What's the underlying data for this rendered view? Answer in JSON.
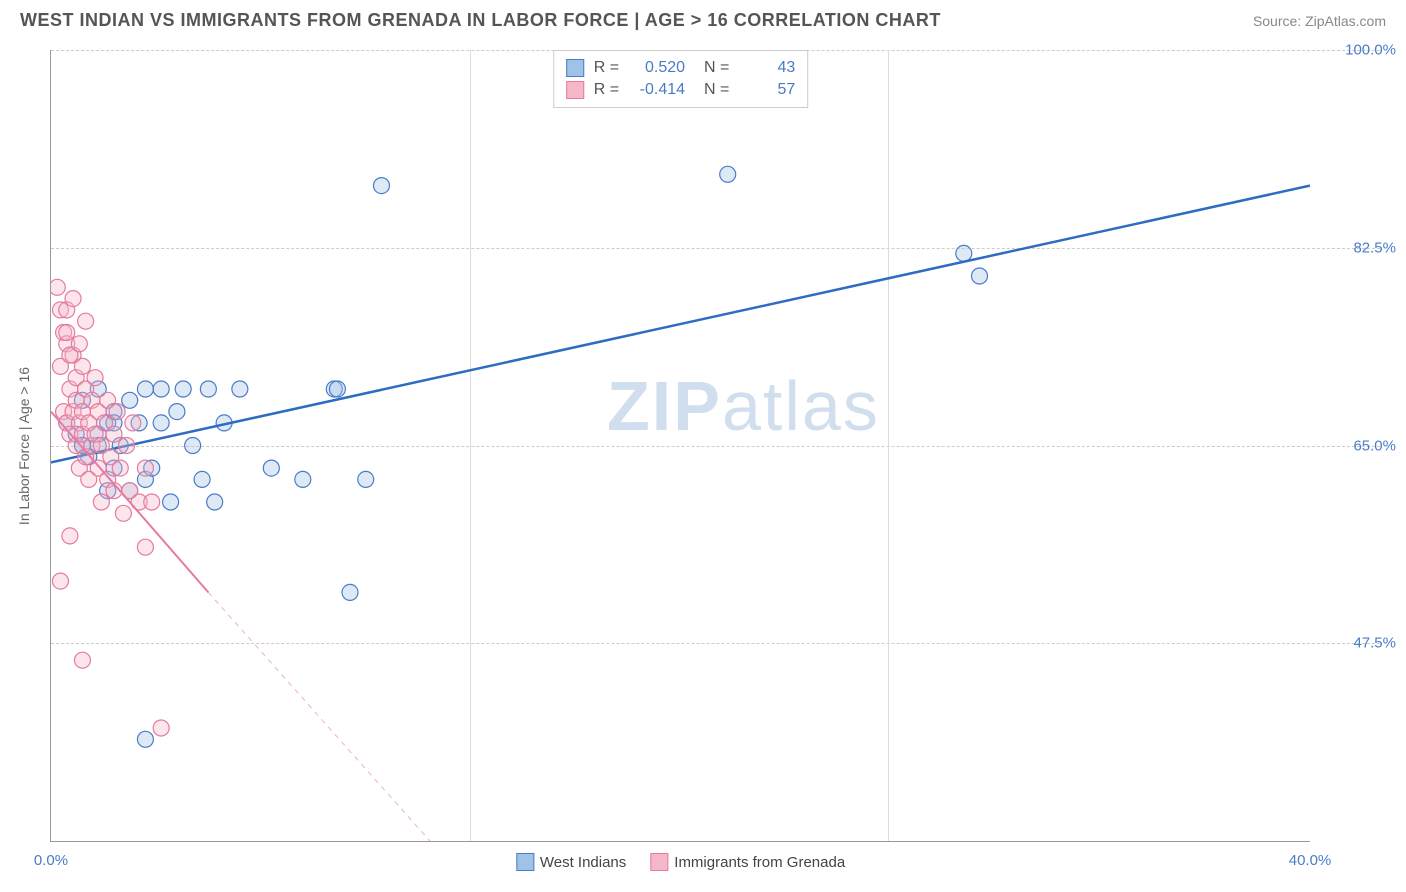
{
  "title": "WEST INDIAN VS IMMIGRANTS FROM GRENADA IN LABOR FORCE | AGE > 16 CORRELATION CHART",
  "source": "Source: ZipAtlas.com",
  "watermark_zip": "ZIP",
  "watermark_atlas": "atlas",
  "ylabel": "In Labor Force | Age > 16",
  "chart": {
    "type": "scatter",
    "background_color": "#ffffff",
    "grid_color": "#cccccc",
    "axis_color": "#999999",
    "tick_label_color": "#4a7bc8",
    "title_color": "#555555",
    "title_fontsize": 18,
    "tick_fontsize": 15,
    "xlim": [
      0,
      40
    ],
    "ylim": [
      30,
      100
    ],
    "xticks": [
      {
        "pos": 0,
        "label": "0.0%"
      },
      {
        "pos": 13.3,
        "label": ""
      },
      {
        "pos": 26.6,
        "label": ""
      },
      {
        "pos": 40,
        "label": "40.0%"
      }
    ],
    "yticks": [
      {
        "pos": 47.5,
        "label": "47.5%"
      },
      {
        "pos": 65.0,
        "label": "65.0%"
      },
      {
        "pos": 82.5,
        "label": "82.5%"
      },
      {
        "pos": 100.0,
        "label": "100.0%"
      }
    ],
    "series": [
      {
        "id": "west_indians",
        "name": "West Indians",
        "marker_color_fill": "#9ec3e6",
        "marker_color_stroke": "#4a7bc8",
        "marker_radius": 8,
        "R": "0.520",
        "N": "43",
        "line": {
          "start": [
            0,
            63.5
          ],
          "end": [
            40,
            88
          ],
          "color": "#2d6cc0",
          "width": 2.5,
          "dash": false,
          "extrap_dash": false
        },
        "points": [
          [
            0.5,
            67
          ],
          [
            0.8,
            66
          ],
          [
            1.0,
            69
          ],
          [
            1.0,
            65
          ],
          [
            1.2,
            64
          ],
          [
            1.5,
            70
          ],
          [
            1.5,
            66
          ],
          [
            1.8,
            67
          ],
          [
            1.8,
            61
          ],
          [
            2.0,
            68
          ],
          [
            2.0,
            63
          ],
          [
            2.2,
            65
          ],
          [
            2.5,
            69
          ],
          [
            2.5,
            61
          ],
          [
            2.8,
            67
          ],
          [
            3.0,
            62
          ],
          [
            3.0,
            70
          ],
          [
            3.2,
            63
          ],
          [
            3.5,
            70
          ],
          [
            3.5,
            67
          ],
          [
            3.8,
            60
          ],
          [
            4.0,
            68
          ],
          [
            4.2,
            70
          ],
          [
            4.5,
            65
          ],
          [
            4.8,
            62
          ],
          [
            5.0,
            70
          ],
          [
            5.2,
            60
          ],
          [
            5.5,
            67
          ],
          [
            6.0,
            70
          ],
          [
            7.0,
            63
          ],
          [
            8.0,
            62
          ],
          [
            9.0,
            70
          ],
          [
            9.1,
            70
          ],
          [
            9.5,
            52
          ],
          [
            10.0,
            62
          ],
          [
            10.5,
            88
          ],
          [
            3.0,
            39
          ],
          [
            2.0,
            67
          ],
          [
            1.5,
            65
          ],
          [
            21.5,
            89
          ],
          [
            29.0,
            82
          ],
          [
            29.5,
            80
          ],
          [
            1.0,
            65
          ]
        ]
      },
      {
        "id": "immigrants_grenada",
        "name": "Immigrants from Grenada",
        "marker_color_fill": "#f5b8c9",
        "marker_color_stroke": "#e57ba0",
        "marker_radius": 8,
        "R": "-0.414",
        "N": "57",
        "line": {
          "start": [
            0,
            68
          ],
          "end": [
            5,
            52
          ],
          "color": "#e57ba0",
          "width": 2,
          "dash": false,
          "extrap_dash": true,
          "extrap_end": [
            13,
            27
          ]
        },
        "points": [
          [
            0.2,
            79
          ],
          [
            0.3,
            77
          ],
          [
            0.3,
            72
          ],
          [
            0.4,
            75
          ],
          [
            0.4,
            68
          ],
          [
            0.5,
            74
          ],
          [
            0.5,
            67
          ],
          [
            0.5,
            77
          ],
          [
            0.6,
            70
          ],
          [
            0.6,
            66
          ],
          [
            0.7,
            73
          ],
          [
            0.7,
            68
          ],
          [
            0.8,
            71
          ],
          [
            0.8,
            65
          ],
          [
            0.8,
            69
          ],
          [
            0.9,
            67
          ],
          [
            0.9,
            63
          ],
          [
            1.0,
            72
          ],
          [
            1.0,
            66
          ],
          [
            1.0,
            68
          ],
          [
            1.1,
            64
          ],
          [
            1.1,
            70
          ],
          [
            1.2,
            67
          ],
          [
            1.2,
            62
          ],
          [
            1.3,
            69
          ],
          [
            1.3,
            65
          ],
          [
            1.4,
            66
          ],
          [
            1.4,
            71
          ],
          [
            1.5,
            63
          ],
          [
            1.5,
            68
          ],
          [
            1.6,
            65
          ],
          [
            1.6,
            60
          ],
          [
            1.7,
            67
          ],
          [
            1.8,
            62
          ],
          [
            1.8,
            69
          ],
          [
            1.9,
            64
          ],
          [
            2.0,
            66
          ],
          [
            2.0,
            61
          ],
          [
            2.1,
            68
          ],
          [
            2.2,
            63
          ],
          [
            2.3,
            59
          ],
          [
            2.4,
            65
          ],
          [
            2.5,
            61
          ],
          [
            2.6,
            67
          ],
          [
            2.8,
            60
          ],
          [
            3.0,
            63
          ],
          [
            3.0,
            56
          ],
          [
            3.2,
            60
          ],
          [
            0.3,
            53
          ],
          [
            0.6,
            57
          ],
          [
            1.0,
            46
          ],
          [
            3.5,
            40
          ],
          [
            0.5,
            75
          ],
          [
            0.6,
            73
          ],
          [
            0.9,
            74
          ],
          [
            1.1,
            76
          ],
          [
            0.7,
            78
          ]
        ]
      }
    ],
    "legend_top": {
      "swatch_border": 1,
      "rows": [
        {
          "swatch_fill": "#9ec3e6",
          "swatch_stroke": "#4a7bc8",
          "R_label": "R =",
          "R": "0.520",
          "N_label": "N =",
          "N": "43"
        },
        {
          "swatch_fill": "#f5b8c9",
          "swatch_stroke": "#e57ba0",
          "R_label": "R =",
          "R": "-0.414",
          "N_label": "N =",
          "N": "57"
        }
      ]
    },
    "legend_bottom": [
      {
        "swatch_fill": "#9ec3e6",
        "swatch_stroke": "#4a7bc8",
        "label": "West Indians"
      },
      {
        "swatch_fill": "#f5b8c9",
        "swatch_stroke": "#e57ba0",
        "label": "Immigrants from Grenada"
      }
    ]
  }
}
